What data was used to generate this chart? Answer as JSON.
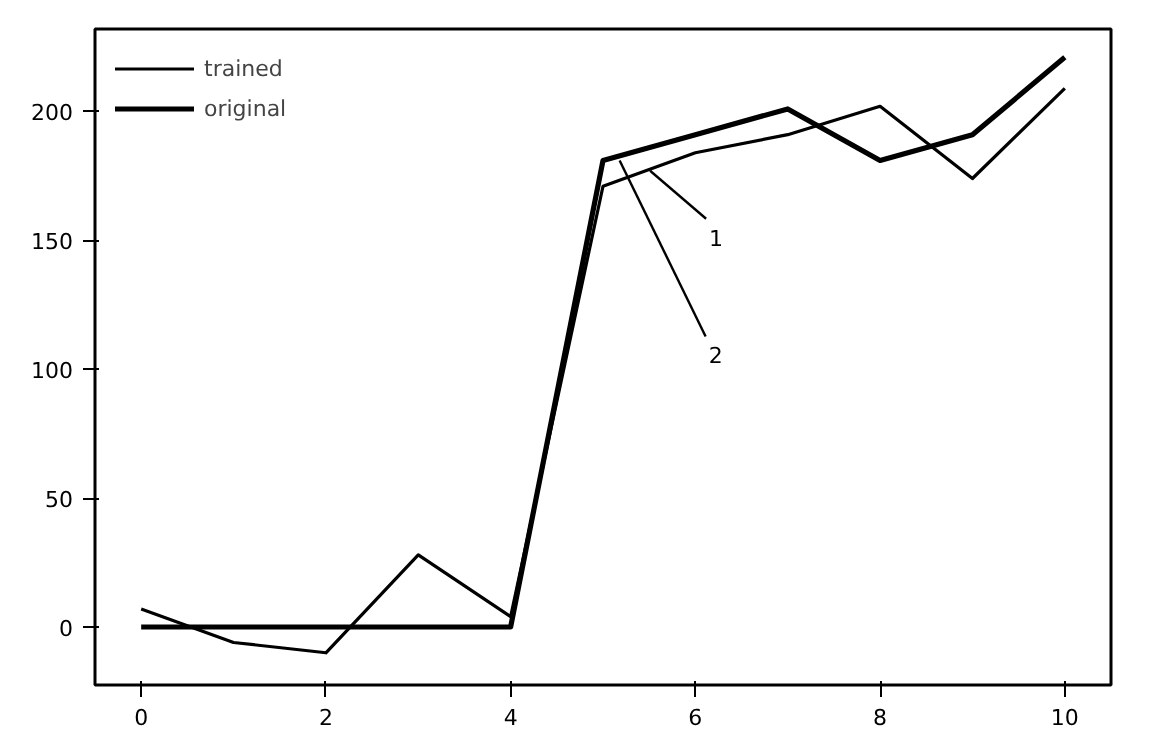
{
  "chart_data": {
    "type": "line",
    "x": [
      0,
      1,
      2,
      3,
      4,
      5,
      6,
      7,
      8,
      9,
      10
    ],
    "series": [
      {
        "name": "trained",
        "color": "#000000",
        "values": [
          7,
          -6,
          -10,
          28,
          4,
          171,
          184,
          191,
          202,
          174,
          209
        ]
      },
      {
        "name": "original",
        "color": "#000000",
        "values": [
          0,
          0,
          0,
          0,
          0,
          181,
          191,
          201,
          181,
          191,
          221
        ]
      }
    ],
    "xlim": [
      -0.5,
      10.5
    ],
    "ylim": [
      -22.5,
      232
    ],
    "xticks": [
      0,
      2,
      4,
      6,
      8,
      10
    ],
    "yticks": [
      0,
      50,
      100,
      150,
      200
    ],
    "annotations": [
      {
        "text": "1",
        "x": 5.51,
        "y": 177
      },
      {
        "text": "2",
        "x": 5.18,
        "y": 181
      }
    ],
    "legend": "top left",
    "grid": false
  }
}
